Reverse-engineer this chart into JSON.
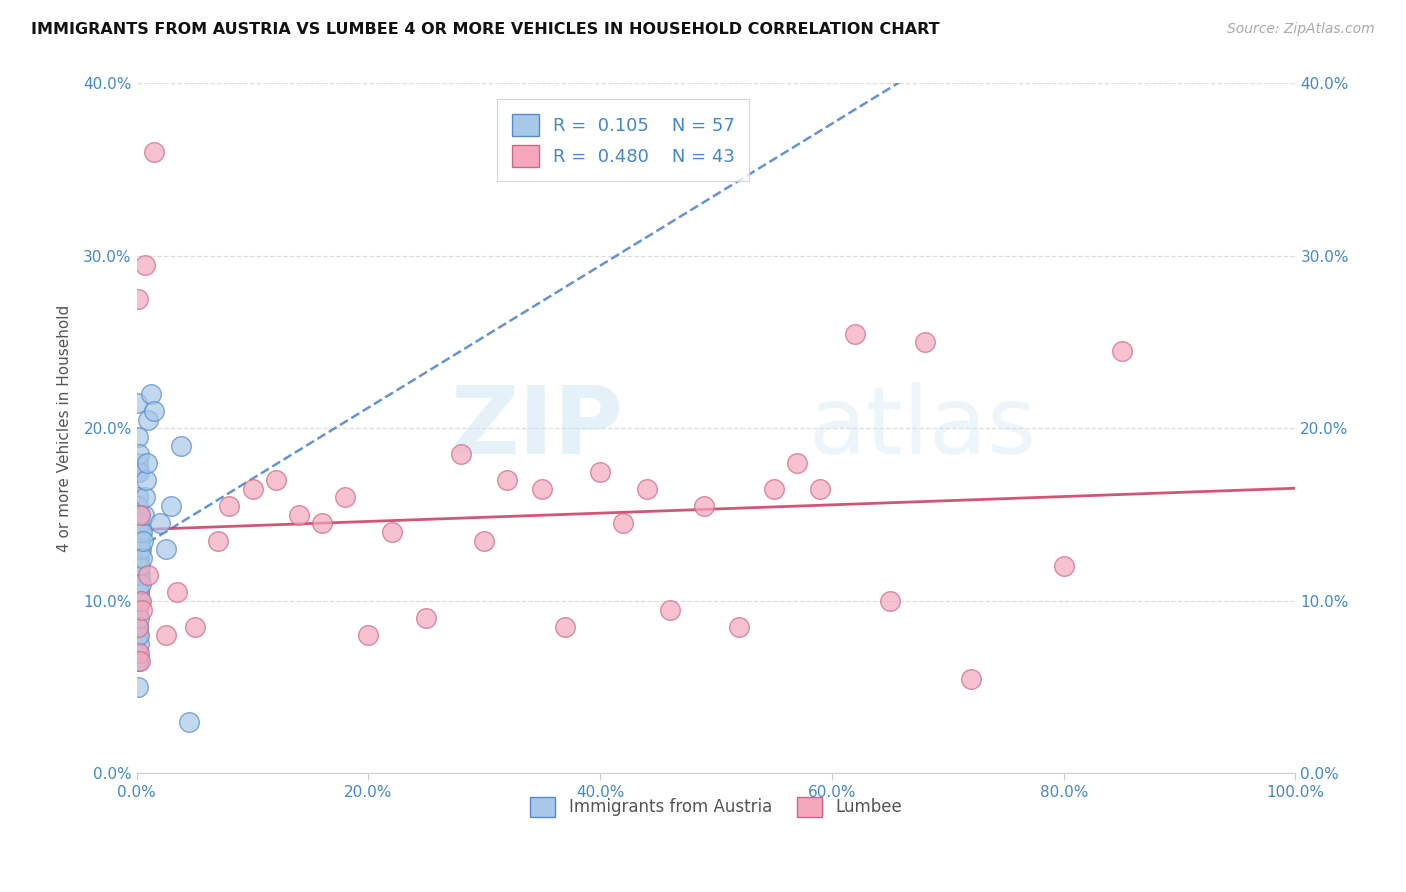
{
  "title": "IMMIGRANTS FROM AUSTRIA VS LUMBEE 4 OR MORE VEHICLES IN HOUSEHOLD CORRELATION CHART",
  "source": "Source: ZipAtlas.com",
  "ylabel": "4 or more Vehicles in Household",
  "legend_austria": "Immigrants from Austria",
  "legend_lumbee": "Lumbee",
  "r_austria": 0.105,
  "n_austria": 57,
  "r_lumbee": 0.48,
  "n_lumbee": 43,
  "austria_color": "#a8c8e8",
  "austria_edge": "#5588cc",
  "lumbee_color": "#f5a8bc",
  "lumbee_edge": "#cc6688",
  "austria_line_color": "#5588cc",
  "lumbee_line_color": "#cc4466",
  "xmin": 0.0,
  "xmax": 100.0,
  "ymin": 0.0,
  "ymax": 40.0,
  "watermark_zip": "ZIP",
  "watermark_atlas": "atlas",
  "xticks": [
    0,
    20,
    40,
    60,
    80,
    100
  ],
  "yticks": [
    0,
    10,
    20,
    30,
    40
  ],
  "austria_x": [
    0.05,
    0.06,
    0.07,
    0.08,
    0.08,
    0.09,
    0.09,
    0.1,
    0.1,
    0.1,
    0.11,
    0.11,
    0.12,
    0.12,
    0.13,
    0.13,
    0.14,
    0.14,
    0.15,
    0.15,
    0.15,
    0.16,
    0.16,
    0.17,
    0.17,
    0.18,
    0.18,
    0.19,
    0.2,
    0.2,
    0.21,
    0.22,
    0.23,
    0.24,
    0.25,
    0.26,
    0.28,
    0.3,
    0.32,
    0.35,
    0.38,
    0.4,
    0.45,
    0.5,
    0.55,
    0.6,
    0.7,
    0.8,
    0.9,
    1.0,
    1.2,
    1.5,
    2.0,
    2.5,
    3.0,
    3.8,
    4.5
  ],
  "austria_y": [
    21.5,
    17.5,
    14.0,
    11.5,
    8.0,
    6.5,
    5.0,
    13.5,
    10.0,
    7.0,
    18.0,
    14.5,
    11.5,
    8.5,
    16.0,
    12.5,
    9.5,
    6.5,
    19.5,
    15.5,
    12.0,
    10.5,
    7.5,
    17.5,
    13.0,
    11.0,
    8.0,
    15.0,
    18.5,
    14.0,
    10.5,
    12.5,
    9.0,
    14.5,
    11.5,
    13.0,
    10.0,
    13.5,
    12.0,
    14.0,
    11.0,
    13.0,
    12.5,
    14.0,
    13.5,
    15.0,
    16.0,
    17.0,
    18.0,
    20.5,
    22.0,
    21.0,
    14.5,
    13.0,
    15.5,
    19.0,
    3.0
  ],
  "lumbee_x": [
    0.1,
    0.15,
    0.2,
    0.25,
    0.3,
    0.4,
    0.5,
    0.7,
    1.0,
    1.5,
    2.5,
    3.5,
    5.0,
    7.0,
    8.0,
    10.0,
    12.0,
    14.0,
    16.0,
    18.0,
    20.0,
    22.0,
    25.0,
    28.0,
    30.0,
    32.0,
    35.0,
    37.0,
    40.0,
    42.0,
    44.0,
    46.0,
    49.0,
    52.0,
    55.0,
    57.0,
    59.0,
    62.0,
    65.0,
    68.0,
    72.0,
    80.0,
    85.0
  ],
  "lumbee_y": [
    27.5,
    8.5,
    7.0,
    6.5,
    15.0,
    10.0,
    9.5,
    29.5,
    11.5,
    36.0,
    8.0,
    10.5,
    8.5,
    13.5,
    15.5,
    16.5,
    17.0,
    15.0,
    14.5,
    16.0,
    8.0,
    14.0,
    9.0,
    18.5,
    13.5,
    17.0,
    16.5,
    8.5,
    17.5,
    14.5,
    16.5,
    9.5,
    15.5,
    8.5,
    16.5,
    18.0,
    16.5,
    25.5,
    10.0,
    25.0,
    5.5,
    12.0,
    24.5
  ]
}
